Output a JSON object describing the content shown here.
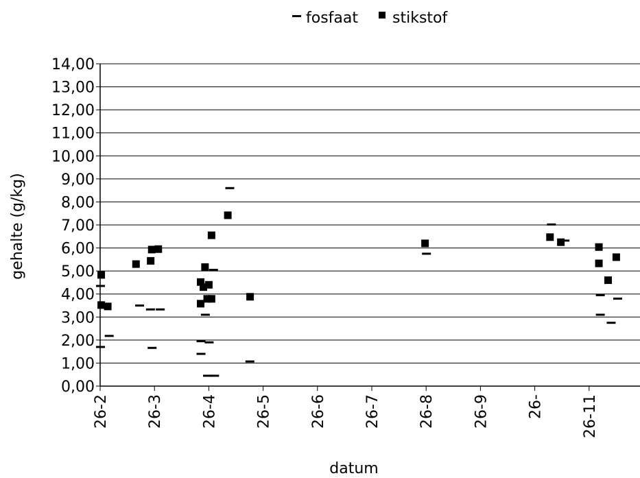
{
  "chart_data": {
    "type": "scatter",
    "title": "",
    "xlabel": "datum",
    "ylabel": "gehalte (g/kg)",
    "ylim": [
      0,
      14
    ],
    "y_ticks": [
      "0,00",
      "1,00",
      "2,00",
      "3,00",
      "4,00",
      "5,00",
      "6,00",
      "7,00",
      "8,00",
      "9,00",
      "10,00",
      "11,00",
      "12,00",
      "13,00",
      "14,00"
    ],
    "x_ticks": [
      "26-2",
      "26-3",
      "26-4",
      "26-5",
      "26-6",
      "26-7",
      "26-8",
      "26-9",
      "26-",
      "26-11"
    ],
    "grid": "horizontal",
    "legend": "top-center",
    "series": [
      {
        "name": "fosfaat",
        "marker": "dash",
        "color": "#000000",
        "points": [
          {
            "x": 0.0,
            "y": 4.35
          },
          {
            "x": 0.0,
            "y": 1.7
          },
          {
            "x": 0.16,
            "y": 2.18
          },
          {
            "x": 0.72,
            "y": 3.5
          },
          {
            "x": 0.92,
            "y": 3.33
          },
          {
            "x": 0.95,
            "y": 1.66
          },
          {
            "x": 1.1,
            "y": 3.33
          },
          {
            "x": 1.85,
            "y": 1.95
          },
          {
            "x": 1.85,
            "y": 1.4
          },
          {
            "x": 1.93,
            "y": 3.1
          },
          {
            "x": 1.97,
            "y": 0.45
          },
          {
            "x": 2.0,
            "y": 1.9
          },
          {
            "x": 2.08,
            "y": 5.05
          },
          {
            "x": 2.1,
            "y": 0.45
          },
          {
            "x": 2.38,
            "y": 8.6
          },
          {
            "x": 2.75,
            "y": 1.07
          },
          {
            "x": 6.0,
            "y": 5.75
          },
          {
            "x": 8.3,
            "y": 7.02
          },
          {
            "x": 8.55,
            "y": 6.32
          },
          {
            "x": 9.2,
            "y": 3.95
          },
          {
            "x": 9.2,
            "y": 3.1
          },
          {
            "x": 9.4,
            "y": 2.75
          },
          {
            "x": 9.52,
            "y": 3.8
          }
        ]
      },
      {
        "name": "stikstof",
        "marker": "square",
        "color": "#000000",
        "points": [
          {
            "x": 0.02,
            "y": 4.83
          },
          {
            "x": 0.02,
            "y": 3.52
          },
          {
            "x": 0.14,
            "y": 3.46
          },
          {
            "x": 0.66,
            "y": 5.3
          },
          {
            "x": 0.93,
            "y": 5.44
          },
          {
            "x": 0.95,
            "y": 5.93
          },
          {
            "x": 1.07,
            "y": 5.95
          },
          {
            "x": 1.85,
            "y": 4.52
          },
          {
            "x": 1.85,
            "y": 3.58
          },
          {
            "x": 1.9,
            "y": 4.3
          },
          {
            "x": 1.93,
            "y": 5.17
          },
          {
            "x": 1.97,
            "y": 3.79
          },
          {
            "x": 2.0,
            "y": 4.4
          },
          {
            "x": 2.05,
            "y": 3.79
          },
          {
            "x": 2.05,
            "y": 6.55
          },
          {
            "x": 2.35,
            "y": 7.42
          },
          {
            "x": 2.76,
            "y": 3.88
          },
          {
            "x": 5.98,
            "y": 6.2
          },
          {
            "x": 8.28,
            "y": 6.47
          },
          {
            "x": 8.48,
            "y": 6.25
          },
          {
            "x": 9.18,
            "y": 6.04
          },
          {
            "x": 9.18,
            "y": 5.33
          },
          {
            "x": 9.35,
            "y": 4.6
          },
          {
            "x": 9.5,
            "y": 5.6
          }
        ]
      }
    ]
  }
}
